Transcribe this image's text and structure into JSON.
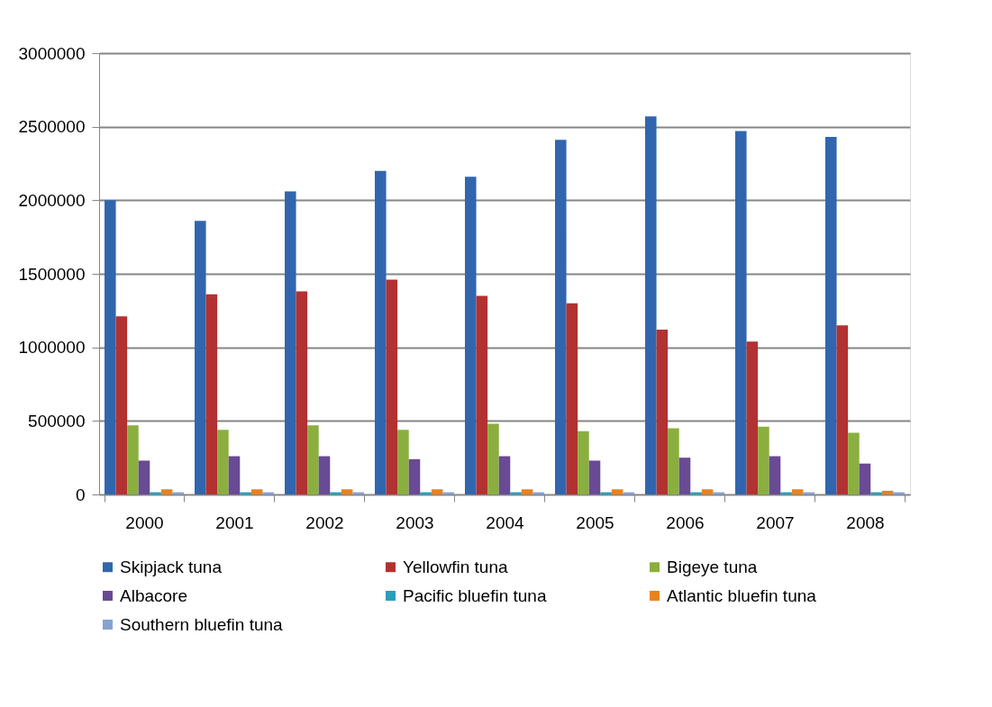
{
  "chart_data": {
    "type": "bar",
    "categories": [
      "2000",
      "2001",
      "2002",
      "2003",
      "2004",
      "2005",
      "2006",
      "2007",
      "2008"
    ],
    "series": [
      {
        "name": "Skipjack tuna",
        "color": "#3166ae",
        "values": [
          2000000,
          1860000,
          2060000,
          2200000,
          2160000,
          2410000,
          2570000,
          2470000,
          2430000
        ]
      },
      {
        "name": "Yellowfin tuna",
        "color": "#b13231",
        "values": [
          1210000,
          1360000,
          1380000,
          1460000,
          1350000,
          1300000,
          1120000,
          1040000,
          1150000
        ]
      },
      {
        "name": "Bigeye tuna",
        "color": "#8aaf3f",
        "values": [
          470000,
          440000,
          470000,
          440000,
          480000,
          430000,
          450000,
          460000,
          420000
        ]
      },
      {
        "name": "Albacore",
        "color": "#694a94",
        "values": [
          230000,
          260000,
          260000,
          240000,
          260000,
          230000,
          250000,
          260000,
          210000
        ]
      },
      {
        "name": "Pacific bluefin tuna",
        "color": "#2a9fba",
        "values": [
          15000,
          15000,
          15000,
          15000,
          15000,
          15000,
          15000,
          15000,
          15000
        ]
      },
      {
        "name": "Atlantic bluefin tuna",
        "color": "#e8821f",
        "values": [
          35000,
          35000,
          35000,
          35000,
          35000,
          35000,
          35000,
          35000,
          25000
        ]
      },
      {
        "name": "Southern bluefin tuna",
        "color": "#86a2d2",
        "values": [
          15000,
          15000,
          15000,
          15000,
          15000,
          15000,
          15000,
          15000,
          15000
        ]
      }
    ],
    "ylim": [
      0,
      3000000
    ],
    "yticks": [
      0,
      500000,
      1000000,
      1500000,
      2000000,
      2500000,
      3000000
    ],
    "grid": "y",
    "legend": "bottom"
  }
}
